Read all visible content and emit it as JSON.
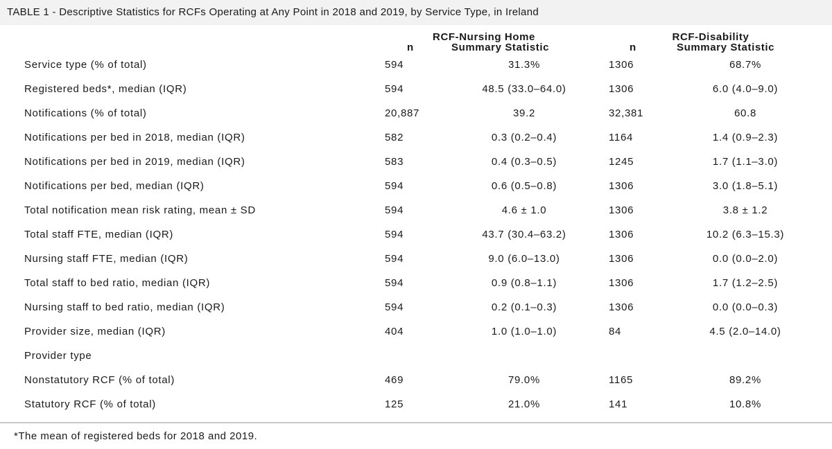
{
  "title": "TABLE 1 - Descriptive Statistics for RCFs Operating at Any Point in 2018 and 2019, by Service Type, in Ireland",
  "groups": {
    "nursing_home": "RCF-Nursing Home",
    "disability": "RCF-Disability"
  },
  "columns": {
    "n1": "n",
    "stat1": "Summary Statistic",
    "n2": "n",
    "stat2": "Summary Statistic"
  },
  "rows": [
    {
      "label": "Service type (% of total)",
      "n1": "594",
      "s1": "31.3%",
      "n2": "1306",
      "s2": "68.7%"
    },
    {
      "label": "Registered beds*, median (IQR)",
      "n1": "594",
      "s1": "48.5 (33.0–64.0)",
      "n2": "1306",
      "s2": "6.0 (4.0–9.0)"
    },
    {
      "label": "Notifications (% of total)",
      "n1": "20,887",
      "s1": "39.2",
      "n2": "32,381",
      "s2": "60.8"
    },
    {
      "label": "Notifications per bed in 2018, median (IQR)",
      "n1": "582",
      "s1": "0.3 (0.2–0.4)",
      "n2": "1164",
      "s2": "1.4 (0.9–2.3)"
    },
    {
      "label": "Notifications per bed in 2019, median (IQR)",
      "n1": "583",
      "s1": "0.4 (0.3–0.5)",
      "n2": "1245",
      "s2": "1.7 (1.1–3.0)"
    },
    {
      "label": "Notifications per bed, median (IQR)",
      "n1": "594",
      "s1": "0.6 (0.5–0.8)",
      "n2": "1306",
      "s2": "3.0 (1.8–5.1)"
    },
    {
      "label": "Total notification mean risk rating, mean ± SD",
      "n1": "594",
      "s1": "4.6 ± 1.0",
      "n2": "1306",
      "s2": "3.8 ± 1.2"
    },
    {
      "label": "Total staff FTE, median (IQR)",
      "n1": "594",
      "s1": "43.7 (30.4–63.2)",
      "n2": "1306",
      "s2": "10.2 (6.3–15.3)"
    },
    {
      "label": "Nursing staff FTE, median (IQR)",
      "n1": "594",
      "s1": "9.0 (6.0–13.0)",
      "n2": "1306",
      "s2": "0.0 (0.0–2.0)"
    },
    {
      "label": "Total staff to bed ratio, median (IQR)",
      "n1": "594",
      "s1": "0.9 (0.8–1.1)",
      "n2": "1306",
      "s2": "1.7 (1.2–2.5)"
    },
    {
      "label": "Nursing staff to bed ratio, median (IQR)",
      "n1": "594",
      "s1": "0.2 (0.1–0.3)",
      "n2": "1306",
      "s2": "0.0 (0.0–0.3)"
    },
    {
      "label": "Provider size, median (IQR)",
      "n1": "404",
      "s1": "1.0 (1.0–1.0)",
      "n2": "84",
      "s2": "4.5 (2.0–14.0)"
    },
    {
      "label": "Provider type",
      "n1": "",
      "s1": "",
      "n2": "",
      "s2": ""
    },
    {
      "label": "Nonstatutory RCF (% of total)",
      "n1": "469",
      "s1": "79.0%",
      "n2": "1165",
      "s2": "89.2%"
    },
    {
      "label": "Statutory RCF (% of total)",
      "n1": "125",
      "s1": "21.0%",
      "n2": "141",
      "s2": "10.8%"
    }
  ],
  "footnote": "*The mean of registered beds for 2018 and 2019."
}
